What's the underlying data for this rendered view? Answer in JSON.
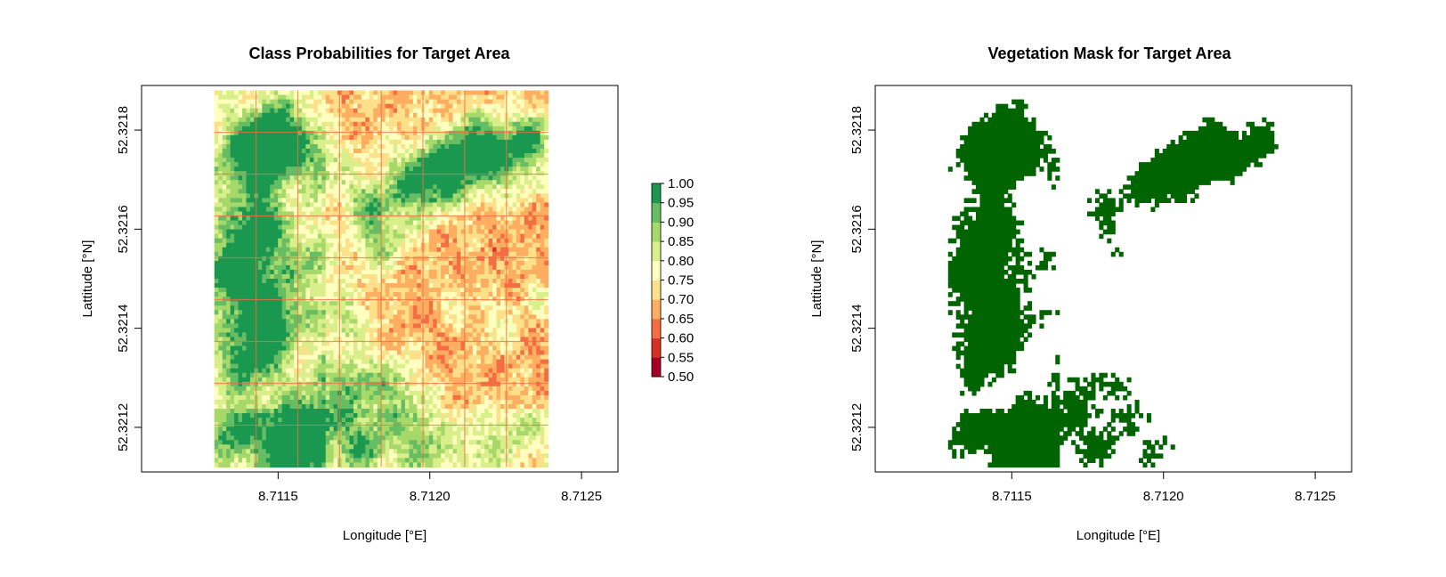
{
  "colors": {
    "background": "#ffffff",
    "mask_fill": "#006400",
    "palette_low_to_high": [
      "#a50026",
      "#d73027",
      "#f46d43",
      "#fdae61",
      "#fee08b",
      "#ffffbf",
      "#d9ef8b",
      "#a6d96a",
      "#66bd63",
      "#1a9850",
      "#006837"
    ]
  },
  "chart_data": [
    {
      "type": "heatmap",
      "title": "Class Probabilities for Target Area",
      "xlabel": "Longitude [°E]",
      "ylabel": "Lattitude [°N]",
      "xlim": [
        8.71105,
        8.71262
      ],
      "ylim": [
        52.32111,
        52.32189
      ],
      "xticks": [
        8.7115,
        8.712,
        8.7125
      ],
      "xtick_labels": [
        "8.7115",
        "8.7120",
        "8.7125"
      ],
      "yticks": [
        52.3212,
        52.3214,
        52.3216,
        52.3218
      ],
      "ytick_labels": [
        "52.3212",
        "52.3214",
        "52.3216",
        "52.3218"
      ],
      "raster_extent": {
        "x": [
          8.71129,
          8.71239
        ],
        "y": [
          52.32112,
          52.32188
        ]
      },
      "legend": {
        "placement": "right",
        "breaks": [
          0.5,
          0.55,
          0.6,
          0.65,
          0.7,
          0.75,
          0.8,
          0.85,
          0.9,
          0.95,
          1.0
        ],
        "labels": [
          "0.50",
          "0.55",
          "0.60",
          "0.65",
          "0.70",
          "0.75",
          "0.80",
          "0.85",
          "0.90",
          "0.95",
          "1.00"
        ],
        "colors": [
          "#a50026",
          "#d73027",
          "#f46d43",
          "#fdae61",
          "#fee08b",
          "#ffffbf",
          "#d9ef8b",
          "#a6d96a",
          "#66bd63",
          "#1a9850"
        ]
      }
    },
    {
      "type": "heatmap",
      "title": "Vegetation Mask for Target Area",
      "xlabel": "Longitude [°E]",
      "ylabel": "Lattitude [°N]",
      "xlim": [
        8.71105,
        8.71262
      ],
      "ylim": [
        52.32111,
        52.32189
      ],
      "xticks": [
        8.7115,
        8.712,
        8.7125
      ],
      "xtick_labels": [
        "8.7115",
        "8.7120",
        "8.7125"
      ],
      "yticks": [
        52.3212,
        52.3214,
        52.3216,
        52.3218
      ],
      "ytick_labels": [
        "52.3212",
        "52.3214",
        "52.3216",
        "52.3218"
      ],
      "raster_extent": {
        "x": [
          8.71129,
          8.71239
        ],
        "y": [
          52.32112,
          52.32188
        ]
      },
      "mask_threshold": 0.9
    }
  ]
}
